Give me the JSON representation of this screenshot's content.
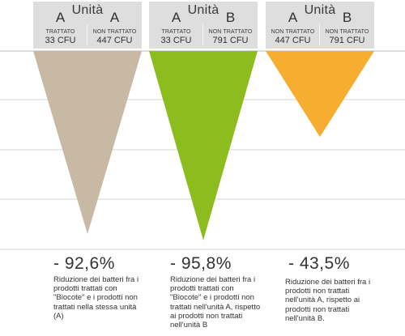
{
  "chart_data": {
    "type": "bar",
    "orientation": "downward-triangles",
    "grid": true,
    "ylim": [
      0,
      100
    ],
    "categories": [
      "A vs A",
      "A vs B",
      "A vs B"
    ],
    "values": [
      92.6,
      95.8,
      43.5
    ],
    "colors": [
      "#c7b9a3",
      "#8dbc1f",
      "#f7ad30"
    ],
    "panels": [
      {
        "title": "Unità",
        "left": {
          "unit": "A",
          "status": "TRATTATO",
          "count": "33 CFU"
        },
        "right": {
          "unit": "A",
          "status": "NON TRATTATO",
          "count": "447 CFU"
        },
        "result_label": "- 92,6%",
        "description": [
          "Riduzione dei batteri fra i",
          "prodotti trattati con",
          "\"Biocote\" e i prodotti non",
          "trattati nella stessa unità",
          "(A)"
        ]
      },
      {
        "title": "Unità",
        "left": {
          "unit": "A",
          "status": "TRATTATO",
          "count": "33 CFU"
        },
        "right": {
          "unit": "B",
          "status": "NON TRATTATO",
          "count": "791 CFU"
        },
        "result_label": "- 95,8%",
        "description": [
          "Riduzione dei batteri fra i",
          "prodotti trattati con",
          "\"Biocote\" e i prodotti non",
          "trattati nell'unità A, rispetto",
          "ai prodotti non trattati",
          "nell'unità B"
        ]
      },
      {
        "title": "Unità",
        "left": {
          "unit": "A",
          "status": "NON TRATTATO",
          "count": "447 CFU"
        },
        "right": {
          "unit": "B",
          "status": "NON TRATTATO",
          "count": "791 CFU"
        },
        "result_label": "- 43,5%",
        "description": [
          "Riduzione dei batteri fra i",
          "prodotti non trattati",
          "nell'unità A, rispetto ai",
          "prodotti non trattati",
          "nell'unità B."
        ]
      }
    ]
  }
}
